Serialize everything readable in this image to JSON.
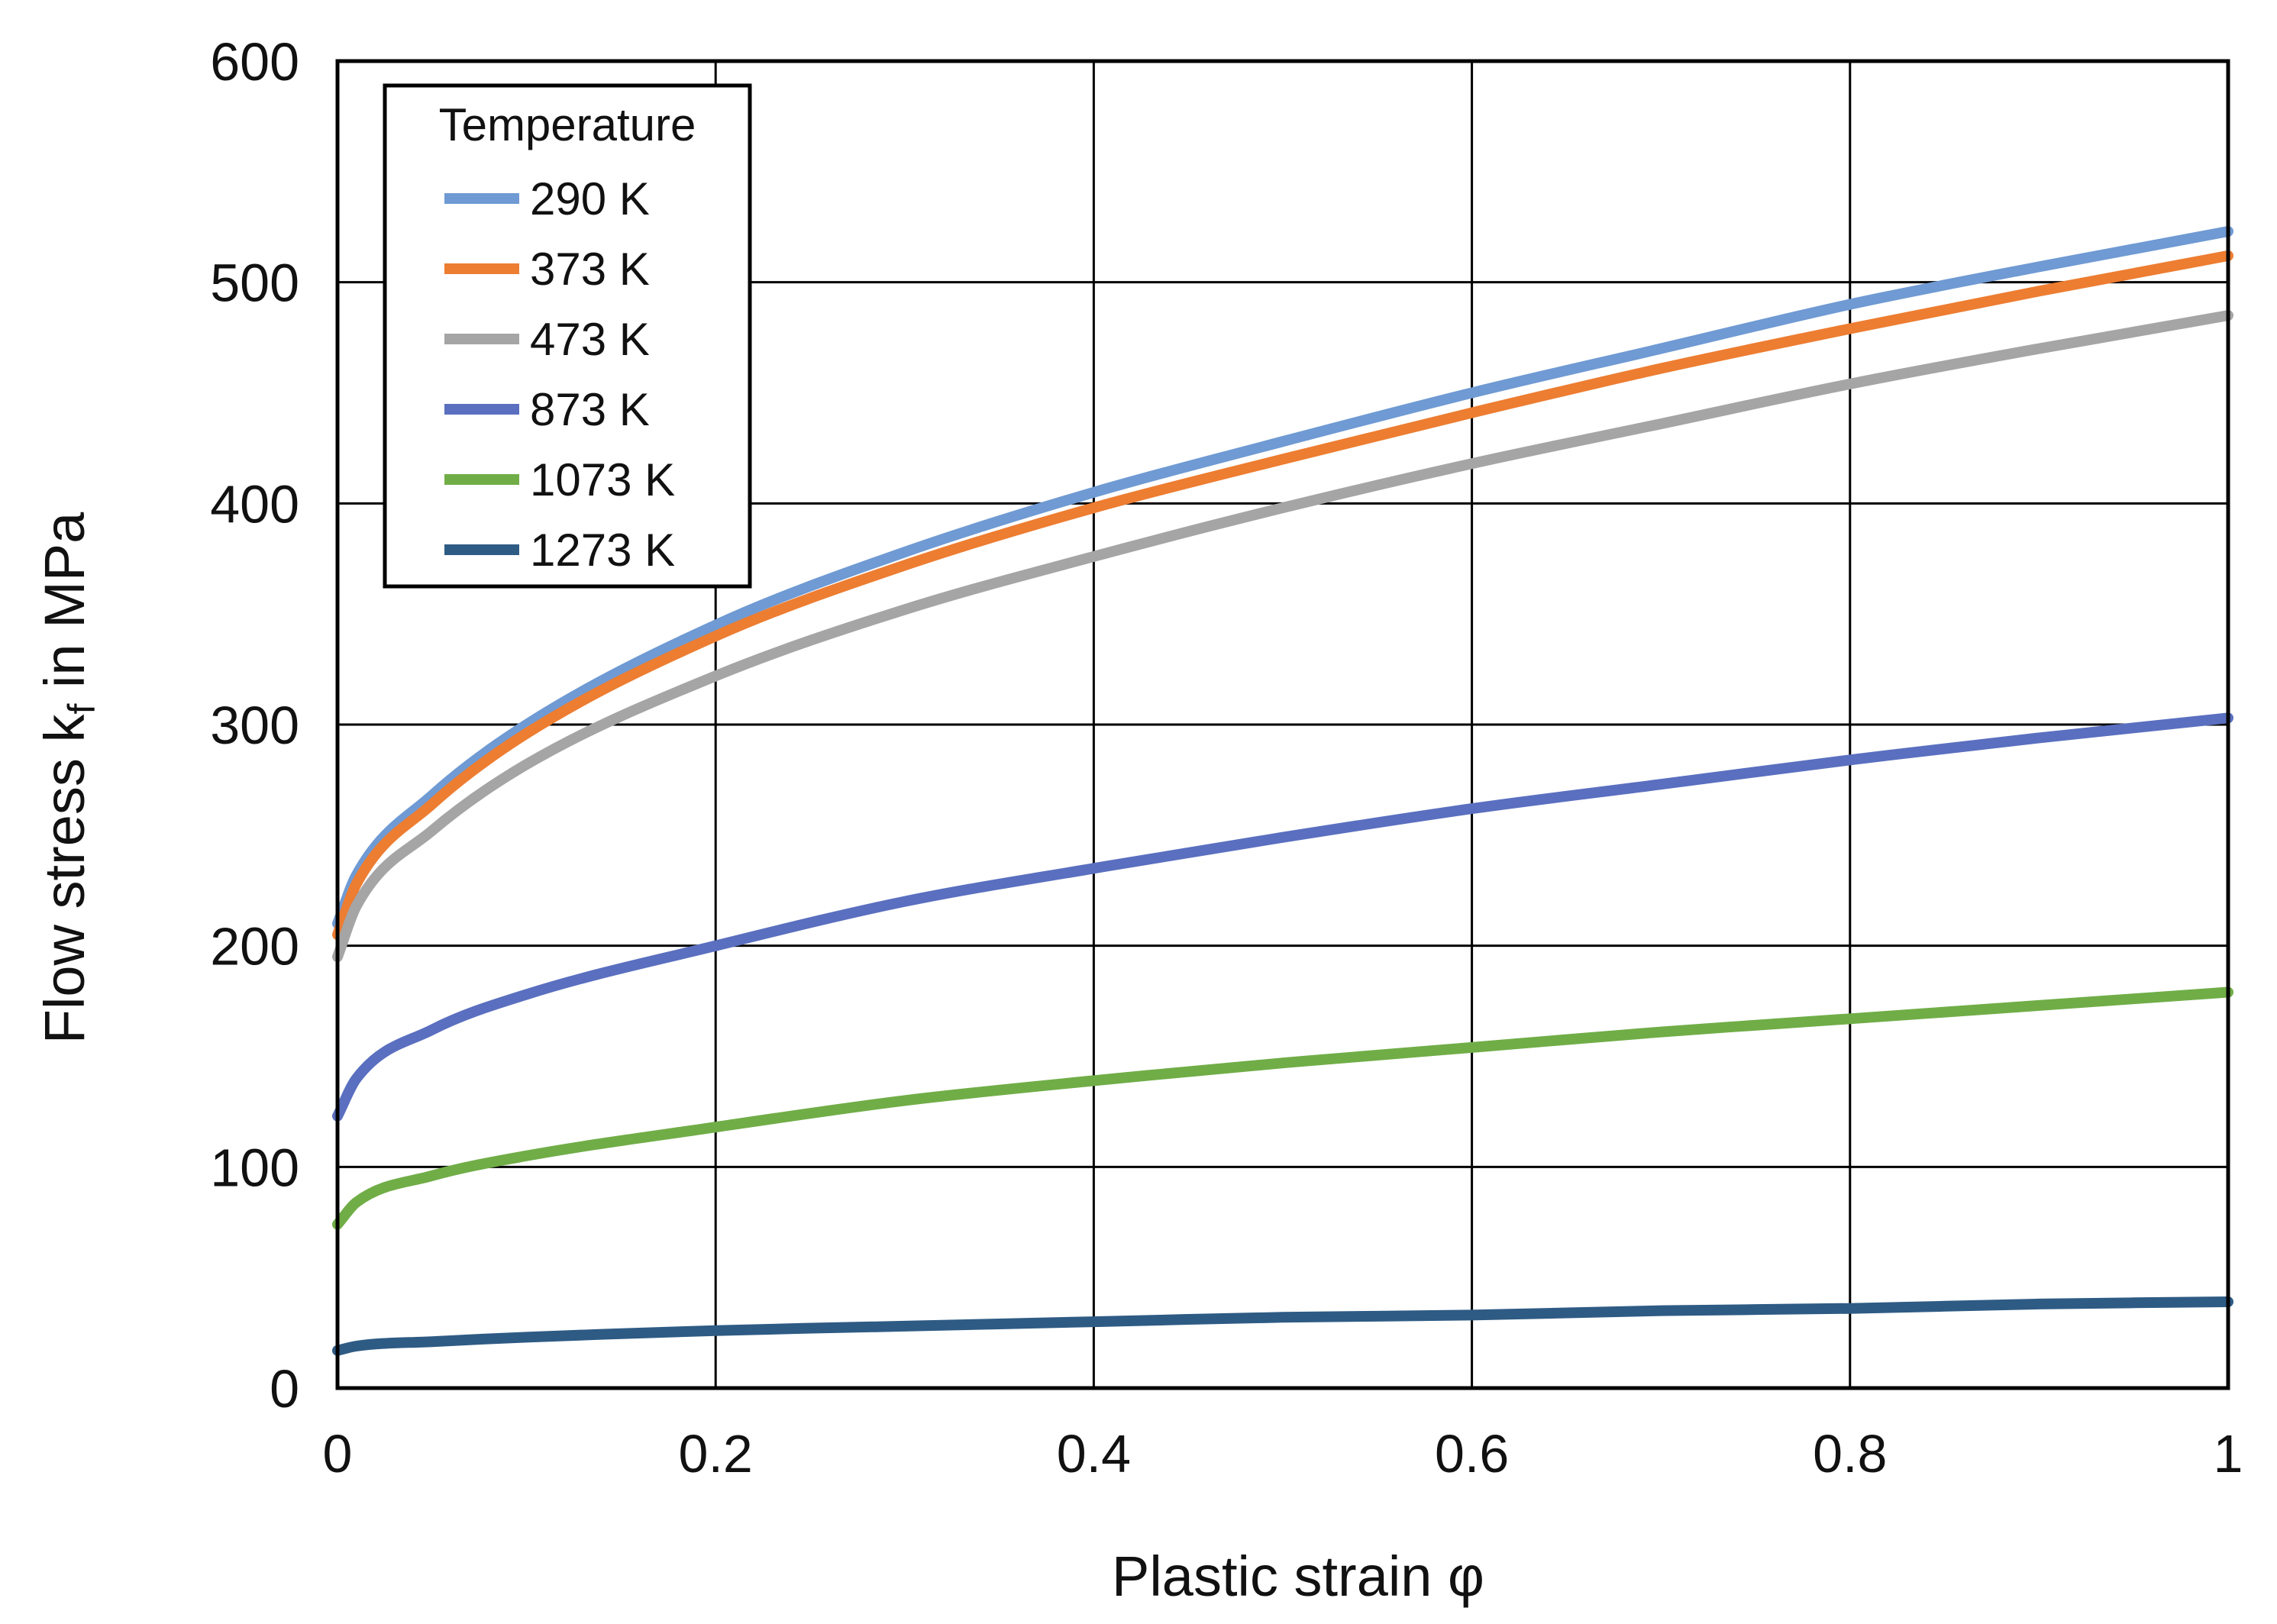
{
  "chart_data": {
    "type": "line",
    "xlabel": "Plastic strain φ",
    "ylabel_main": "Flow stress k",
    "ylabel_sub": "f",
    "ylabel_tail": " in MPa",
    "xlim": [
      0,
      1
    ],
    "ylim": [
      0,
      600
    ],
    "grid": true,
    "xticks": [
      0,
      0.2,
      0.4,
      0.6,
      0.8,
      1
    ],
    "xtick_labels": [
      "0",
      "0.2",
      "0.4",
      "0.6",
      "0.8",
      "1"
    ],
    "yticks": [
      0,
      100,
      200,
      300,
      400,
      500,
      600
    ],
    "ytick_labels": [
      "0",
      "100",
      "200",
      "300",
      "400",
      "500",
      "600"
    ],
    "legend": {
      "title": "Temperature",
      "placement": "top-left"
    },
    "series": [
      {
        "name": "290 K",
        "color": "#6f9ad3",
        "x": [
          0,
          0.01,
          0.05,
          0.1,
          0.2,
          0.3,
          0.4,
          0.5,
          0.6,
          0.7,
          0.8,
          0.9,
          1.0
        ],
        "y": [
          210,
          232,
          268,
          300,
          345,
          378,
          405,
          428,
          450,
          470,
          490,
          507,
          523
        ]
      },
      {
        "name": "373 K",
        "color": "#ed7d31",
        "x": [
          0,
          0.01,
          0.05,
          0.1,
          0.2,
          0.3,
          0.4,
          0.5,
          0.6,
          0.7,
          0.8,
          0.9,
          1.0
        ],
        "y": [
          205,
          228,
          264,
          296,
          340,
          372,
          398,
          420,
          441,
          461,
          479,
          496,
          512
        ]
      },
      {
        "name": "473 K",
        "color": "#a5a5a5",
        "x": [
          0,
          0.01,
          0.05,
          0.1,
          0.2,
          0.3,
          0.4,
          0.5,
          0.6,
          0.7,
          0.8,
          0.9,
          1.0
        ],
        "y": [
          195,
          218,
          252,
          282,
          322,
          352,
          376,
          398,
          418,
          436,
          454,
          470,
          485
        ]
      },
      {
        "name": "873 K",
        "color": "#5a6fbf",
        "x": [
          0,
          0.01,
          0.05,
          0.1,
          0.2,
          0.3,
          0.4,
          0.5,
          0.6,
          0.7,
          0.8,
          0.9,
          1.0
        ],
        "y": [
          123,
          140,
          162,
          178,
          200,
          220,
          235,
          249,
          262,
          273,
          284,
          294,
          303
        ]
      },
      {
        "name": "1073 K",
        "color": "#70ad47",
        "x": [
          0,
          0.01,
          0.05,
          0.1,
          0.2,
          0.3,
          0.4,
          0.5,
          0.6,
          0.7,
          0.8,
          0.9,
          1.0
        ],
        "y": [
          74,
          84,
          96,
          105,
          118,
          130,
          139,
          147,
          154,
          161,
          167,
          173,
          179
        ]
      },
      {
        "name": "1273 K",
        "color": "#2e5b84",
        "x": [
          0,
          0.01,
          0.05,
          0.1,
          0.2,
          0.3,
          0.4,
          0.5,
          0.6,
          0.7,
          0.8,
          0.9,
          1.0
        ],
        "y": [
          17,
          19,
          21,
          23,
          26,
          28,
          30,
          32,
          33,
          35,
          36,
          38,
          39
        ]
      }
    ]
  }
}
